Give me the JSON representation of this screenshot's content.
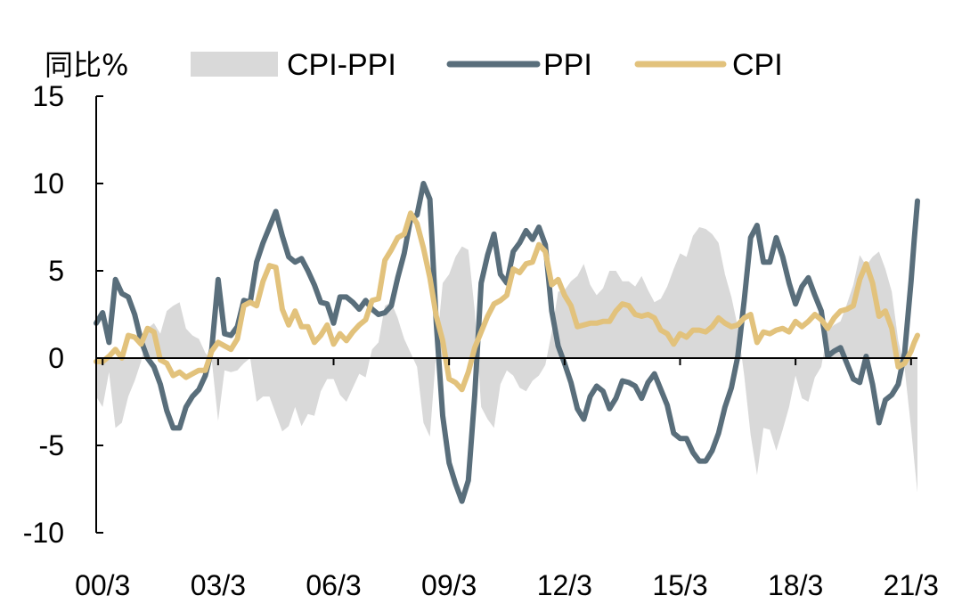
{
  "chart_data": {
    "type": "line",
    "ylabel": "同比%",
    "ylim": [
      -10,
      15
    ],
    "yticks": [
      "15",
      "10",
      "5",
      "0",
      "-5",
      "-10"
    ],
    "x_ticks": [
      "00/3",
      "03/3",
      "06/3",
      "09/3",
      "12/3",
      "15/3",
      "18/3",
      "21/3"
    ],
    "x_range": [
      "2000-01",
      "2021-05"
    ],
    "grid": false,
    "legend_position": "top",
    "series": [
      {
        "name": "CPI-PPI",
        "kind": "area",
        "color": "#d9d9d9",
        "derived": "CPI minus PPI",
        "values": []
      },
      {
        "name": "PPI",
        "kind": "line",
        "color": "#596e7b",
        "points": [
          [
            "2000-01",
            2.0
          ],
          [
            "2000-03",
            2.6
          ],
          [
            "2000-05",
            0.9
          ],
          [
            "2000-07",
            4.5
          ],
          [
            "2000-09",
            3.7
          ],
          [
            "2000-11",
            3.5
          ],
          [
            "2001-01",
            2.5
          ],
          [
            "2001-03",
            1.0
          ],
          [
            "2001-05",
            0.0
          ],
          [
            "2001-07",
            -0.5
          ],
          [
            "2001-09",
            -1.5
          ],
          [
            "2001-11",
            -3.0
          ],
          [
            "2002-01",
            -4.0
          ],
          [
            "2002-03",
            -4.0
          ],
          [
            "2002-05",
            -2.8
          ],
          [
            "2002-07",
            -2.2
          ],
          [
            "2002-09",
            -1.8
          ],
          [
            "2002-11",
            -1.0
          ],
          [
            "2003-01",
            0.5
          ],
          [
            "2003-03",
            4.5
          ],
          [
            "2003-05",
            1.4
          ],
          [
            "2003-07",
            1.3
          ],
          [
            "2003-09",
            1.8
          ],
          [
            "2003-11",
            3.3
          ],
          [
            "2004-01",
            3.2
          ],
          [
            "2004-03",
            5.5
          ],
          [
            "2004-05",
            6.6
          ],
          [
            "2004-07",
            7.5
          ],
          [
            "2004-09",
            8.4
          ],
          [
            "2004-11",
            7.0
          ],
          [
            "2005-01",
            5.8
          ],
          [
            "2005-03",
            5.5
          ],
          [
            "2005-05",
            5.7
          ],
          [
            "2005-07",
            5.0
          ],
          [
            "2005-09",
            4.2
          ],
          [
            "2005-11",
            3.2
          ],
          [
            "2006-01",
            3.1
          ],
          [
            "2006-03",
            2.0
          ],
          [
            "2006-05",
            3.5
          ],
          [
            "2006-07",
            3.5
          ],
          [
            "2006-09",
            3.2
          ],
          [
            "2006-11",
            2.8
          ],
          [
            "2007-01",
            3.3
          ],
          [
            "2007-03",
            2.8
          ],
          [
            "2007-05",
            2.5
          ],
          [
            "2007-07",
            2.6
          ],
          [
            "2007-09",
            3.0
          ],
          [
            "2007-11",
            4.6
          ],
          [
            "2008-01",
            6.0
          ],
          [
            "2008-03",
            8.0
          ],
          [
            "2008-05",
            8.2
          ],
          [
            "2008-07",
            10.0
          ],
          [
            "2008-09",
            9.1
          ],
          [
            "2008-11",
            2.0
          ],
          [
            "2009-01",
            -3.3
          ],
          [
            "2009-03",
            -6.0
          ],
          [
            "2009-05",
            -7.2
          ],
          [
            "2009-07",
            -8.2
          ],
          [
            "2009-09",
            -7.0
          ],
          [
            "2009-11",
            -2.1
          ],
          [
            "2010-01",
            4.3
          ],
          [
            "2010-03",
            5.9
          ],
          [
            "2010-05",
            7.1
          ],
          [
            "2010-07",
            4.8
          ],
          [
            "2010-09",
            4.3
          ],
          [
            "2010-11",
            6.1
          ],
          [
            "2011-01",
            6.6
          ],
          [
            "2011-03",
            7.3
          ],
          [
            "2011-05",
            6.8
          ],
          [
            "2011-07",
            7.5
          ],
          [
            "2011-09",
            6.5
          ],
          [
            "2011-11",
            2.7
          ],
          [
            "2012-01",
            0.7
          ],
          [
            "2012-03",
            -0.3
          ],
          [
            "2012-05",
            -1.4
          ],
          [
            "2012-07",
            -2.9
          ],
          [
            "2012-09",
            -3.5
          ],
          [
            "2012-11",
            -2.2
          ],
          [
            "2013-01",
            -1.6
          ],
          [
            "2013-03",
            -1.9
          ],
          [
            "2013-05",
            -2.9
          ],
          [
            "2013-07",
            -2.3
          ],
          [
            "2013-09",
            -1.3
          ],
          [
            "2013-11",
            -1.4
          ],
          [
            "2014-01",
            -1.6
          ],
          [
            "2014-03",
            -2.3
          ],
          [
            "2014-05",
            -1.4
          ],
          [
            "2014-07",
            -0.9
          ],
          [
            "2014-09",
            -1.8
          ],
          [
            "2014-11",
            -2.7
          ],
          [
            "2015-01",
            -4.3
          ],
          [
            "2015-03",
            -4.6
          ],
          [
            "2015-05",
            -4.6
          ],
          [
            "2015-07",
            -5.4
          ],
          [
            "2015-09",
            -5.9
          ],
          [
            "2015-11",
            -5.9
          ],
          [
            "2016-01",
            -5.3
          ],
          [
            "2016-03",
            -4.3
          ],
          [
            "2016-05",
            -2.8
          ],
          [
            "2016-07",
            -1.7
          ],
          [
            "2016-09",
            0.1
          ],
          [
            "2016-11",
            3.3
          ],
          [
            "2017-01",
            6.9
          ],
          [
            "2017-03",
            7.6
          ],
          [
            "2017-05",
            5.5
          ],
          [
            "2017-07",
            5.5
          ],
          [
            "2017-09",
            6.9
          ],
          [
            "2017-11",
            5.8
          ],
          [
            "2018-01",
            4.3
          ],
          [
            "2018-03",
            3.1
          ],
          [
            "2018-05",
            4.1
          ],
          [
            "2018-07",
            4.6
          ],
          [
            "2018-09",
            3.6
          ],
          [
            "2018-11",
            2.7
          ],
          [
            "2019-01",
            0.1
          ],
          [
            "2019-03",
            0.4
          ],
          [
            "2019-05",
            0.6
          ],
          [
            "2019-07",
            -0.3
          ],
          [
            "2019-09",
            -1.2
          ],
          [
            "2019-11",
            -1.4
          ],
          [
            "2020-01",
            0.1
          ],
          [
            "2020-03",
            -1.5
          ],
          [
            "2020-05",
            -3.7
          ],
          [
            "2020-07",
            -2.4
          ],
          [
            "2020-09",
            -2.1
          ],
          [
            "2020-11",
            -1.5
          ],
          [
            "2021-01",
            0.3
          ],
          [
            "2021-03",
            4.4
          ],
          [
            "2021-04",
            6.8
          ],
          [
            "2021-05",
            9.0
          ]
        ]
      },
      {
        "name": "CPI",
        "kind": "line",
        "color": "#e2c27c",
        "points": [
          [
            "2000-01",
            -0.2
          ],
          [
            "2000-03",
            -0.2
          ],
          [
            "2000-05",
            0.1
          ],
          [
            "2000-07",
            0.5
          ],
          [
            "2000-09",
            0.0
          ],
          [
            "2000-11",
            1.3
          ],
          [
            "2001-01",
            1.2
          ],
          [
            "2001-03",
            0.8
          ],
          [
            "2001-05",
            1.7
          ],
          [
            "2001-07",
            1.5
          ],
          [
            "2001-09",
            -0.1
          ],
          [
            "2001-11",
            -0.3
          ],
          [
            "2002-01",
            -1.0
          ],
          [
            "2002-03",
            -0.8
          ],
          [
            "2002-05",
            -1.1
          ],
          [
            "2002-07",
            -0.9
          ],
          [
            "2002-09",
            -0.7
          ],
          [
            "2002-11",
            -0.7
          ],
          [
            "2003-01",
            0.4
          ],
          [
            "2003-03",
            0.9
          ],
          [
            "2003-05",
            0.7
          ],
          [
            "2003-07",
            0.5
          ],
          [
            "2003-09",
            1.1
          ],
          [
            "2003-11",
            3.0
          ],
          [
            "2004-01",
            3.2
          ],
          [
            "2004-03",
            3.0
          ],
          [
            "2004-05",
            4.4
          ],
          [
            "2004-07",
            5.3
          ],
          [
            "2004-09",
            5.2
          ],
          [
            "2004-11",
            2.8
          ],
          [
            "2005-01",
            1.9
          ],
          [
            "2005-03",
            2.7
          ],
          [
            "2005-05",
            1.8
          ],
          [
            "2005-07",
            1.8
          ],
          [
            "2005-09",
            0.9
          ],
          [
            "2005-11",
            1.3
          ],
          [
            "2006-01",
            1.9
          ],
          [
            "2006-03",
            0.8
          ],
          [
            "2006-05",
            1.4
          ],
          [
            "2006-07",
            1.0
          ],
          [
            "2006-09",
            1.5
          ],
          [
            "2006-11",
            1.9
          ],
          [
            "2007-01",
            2.2
          ],
          [
            "2007-03",
            3.3
          ],
          [
            "2007-05",
            3.4
          ],
          [
            "2007-07",
            5.6
          ],
          [
            "2007-09",
            6.2
          ],
          [
            "2007-11",
            6.9
          ],
          [
            "2008-01",
            7.1
          ],
          [
            "2008-03",
            8.3
          ],
          [
            "2008-05",
            7.7
          ],
          [
            "2008-07",
            6.3
          ],
          [
            "2008-09",
            4.6
          ],
          [
            "2008-11",
            2.4
          ],
          [
            "2009-01",
            1.0
          ],
          [
            "2009-03",
            -1.2
          ],
          [
            "2009-05",
            -1.4
          ],
          [
            "2009-07",
            -1.8
          ],
          [
            "2009-09",
            -0.8
          ],
          [
            "2009-11",
            0.6
          ],
          [
            "2010-01",
            1.5
          ],
          [
            "2010-03",
            2.4
          ],
          [
            "2010-05",
            3.1
          ],
          [
            "2010-07",
            3.3
          ],
          [
            "2010-09",
            3.6
          ],
          [
            "2010-11",
            5.1
          ],
          [
            "2011-01",
            4.9
          ],
          [
            "2011-03",
            5.4
          ],
          [
            "2011-05",
            5.5
          ],
          [
            "2011-07",
            6.5
          ],
          [
            "2011-09",
            6.1
          ],
          [
            "2011-11",
            4.2
          ],
          [
            "2012-01",
            4.5
          ],
          [
            "2012-03",
            3.6
          ],
          [
            "2012-05",
            3.0
          ],
          [
            "2012-07",
            1.8
          ],
          [
            "2012-09",
            1.9
          ],
          [
            "2012-11",
            2.0
          ],
          [
            "2013-01",
            2.0
          ],
          [
            "2013-03",
            2.1
          ],
          [
            "2013-05",
            2.1
          ],
          [
            "2013-07",
            2.7
          ],
          [
            "2013-09",
            3.1
          ],
          [
            "2013-11",
            3.0
          ],
          [
            "2014-01",
            2.5
          ],
          [
            "2014-03",
            2.4
          ],
          [
            "2014-05",
            2.5
          ],
          [
            "2014-07",
            2.3
          ],
          [
            "2014-09",
            1.6
          ],
          [
            "2014-11",
            1.4
          ],
          [
            "2015-01",
            0.8
          ],
          [
            "2015-03",
            1.4
          ],
          [
            "2015-05",
            1.2
          ],
          [
            "2015-07",
            1.6
          ],
          [
            "2015-09",
            1.6
          ],
          [
            "2015-11",
            1.5
          ],
          [
            "2016-01",
            1.8
          ],
          [
            "2016-03",
            2.3
          ],
          [
            "2016-05",
            2.0
          ],
          [
            "2016-07",
            1.8
          ],
          [
            "2016-09",
            1.9
          ],
          [
            "2016-11",
            2.3
          ],
          [
            "2017-01",
            2.5
          ],
          [
            "2017-03",
            0.9
          ],
          [
            "2017-05",
            1.5
          ],
          [
            "2017-07",
            1.4
          ],
          [
            "2017-09",
            1.6
          ],
          [
            "2017-11",
            1.7
          ],
          [
            "2018-01",
            1.5
          ],
          [
            "2018-03",
            2.1
          ],
          [
            "2018-05",
            1.8
          ],
          [
            "2018-07",
            2.1
          ],
          [
            "2018-09",
            2.5
          ],
          [
            "2018-11",
            2.2
          ],
          [
            "2019-01",
            1.7
          ],
          [
            "2019-03",
            2.3
          ],
          [
            "2019-05",
            2.7
          ],
          [
            "2019-07",
            2.8
          ],
          [
            "2019-09",
            3.0
          ],
          [
            "2019-11",
            4.5
          ],
          [
            "2020-01",
            5.4
          ],
          [
            "2020-03",
            4.3
          ],
          [
            "2020-05",
            2.4
          ],
          [
            "2020-07",
            2.7
          ],
          [
            "2020-09",
            1.7
          ],
          [
            "2020-11",
            -0.5
          ],
          [
            "2021-01",
            -0.3
          ],
          [
            "2021-03",
            0.4
          ],
          [
            "2021-04",
            0.9
          ],
          [
            "2021-05",
            1.3
          ]
        ]
      }
    ]
  }
}
